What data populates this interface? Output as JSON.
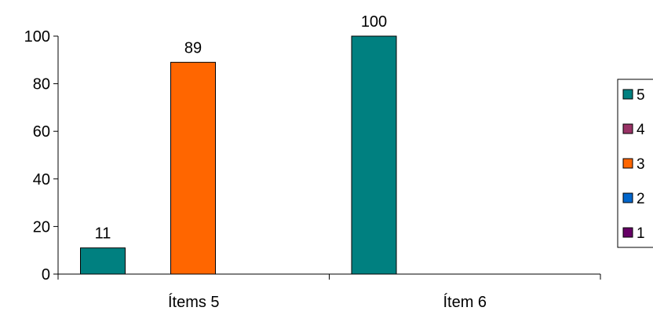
{
  "chart_data": {
    "type": "bar",
    "categories": [
      "Ítems 5",
      "Ítem 6"
    ],
    "series": [
      {
        "name": "5",
        "color": "#008080",
        "values": [
          11,
          100
        ]
      },
      {
        "name": "4",
        "color": "#993366",
        "values": [
          0,
          0
        ]
      },
      {
        "name": "3",
        "color": "#FF6600",
        "values": [
          89,
          0
        ]
      },
      {
        "name": "2",
        "color": "#0066CC",
        "values": [
          0,
          0
        ]
      },
      {
        "name": "1",
        "color": "#660066",
        "values": [
          0,
          0
        ]
      }
    ],
    "data_labels": [
      {
        "series": "5",
        "category": "Ítems 5",
        "text": "11"
      },
      {
        "series": "3",
        "category": "Ítems 5",
        "text": "89"
      },
      {
        "series": "5",
        "category": "Ítem 6",
        "text": "100"
      }
    ],
    "ylim": [
      0,
      100
    ],
    "yticks": [
      0,
      20,
      40,
      60,
      80,
      100
    ],
    "grid": false,
    "legend": "right",
    "title": "",
    "xlabel": "",
    "ylabel": ""
  }
}
